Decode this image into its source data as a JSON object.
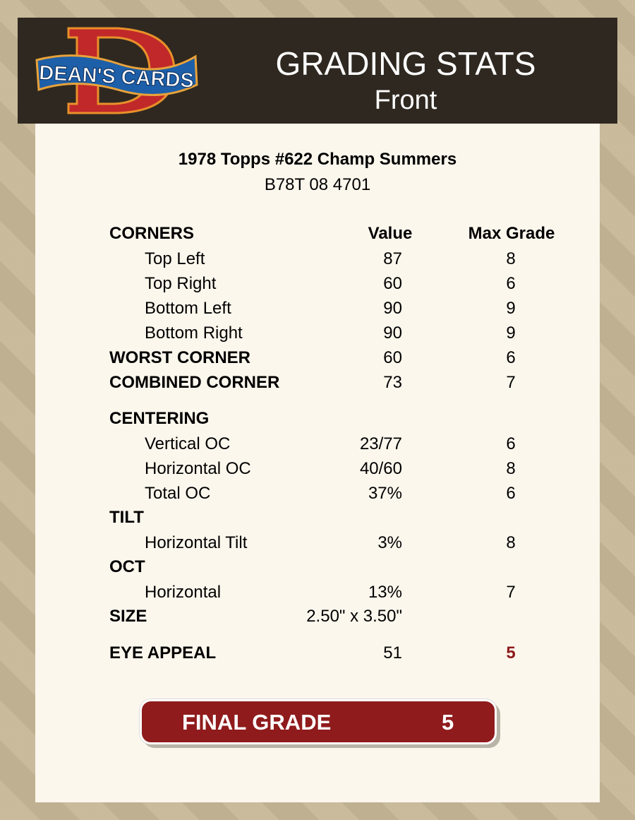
{
  "header": {
    "logo_text": "DEAN'S CARDS",
    "title": "GRADING STATS",
    "subtitle": "Front"
  },
  "card": {
    "title": "1978 Topps #622 Champ Summers",
    "id": "B78T 08 4701"
  },
  "columns": {
    "value": "Value",
    "max": "Max Grade"
  },
  "rows": [
    {
      "label": "CORNERS",
      "type": "section"
    },
    {
      "label": "Top Left",
      "value": "87",
      "max": "8"
    },
    {
      "label": "Top Right",
      "value": "60",
      "max": "6"
    },
    {
      "label": "Bottom Left",
      "value": "90",
      "max": "9"
    },
    {
      "label": "Bottom Right",
      "value": "90",
      "max": "9"
    },
    {
      "label": "WORST CORNER",
      "value": "60",
      "max": "6"
    },
    {
      "label": "COMBINED CORNER",
      "value": "73",
      "max": "7"
    },
    {
      "label": "CENTERING"
    },
    {
      "label": "Vertical OC",
      "value": "23/77",
      "max": "6"
    },
    {
      "label": "Horizontal OC",
      "value": "40/60",
      "max": "8"
    },
    {
      "label": "Total OC",
      "value": "37%",
      "max": "6"
    },
    {
      "label": "TILT"
    },
    {
      "label": "Horizontal Tilt",
      "value": "3%",
      "max": "8"
    },
    {
      "label": "OCT"
    },
    {
      "label": "Horizontal",
      "value": "13%",
      "max": "7"
    },
    {
      "label": "SIZE",
      "value": "2.50\" x 3.50\""
    },
    {
      "label": "EYE APPEAL",
      "value": "51",
      "max": "5"
    }
  ],
  "final": {
    "label": "FINAL GRADE",
    "value": "5"
  },
  "colors": {
    "header_bg": "#2f2820",
    "panel_bg": "#fcf7ed",
    "accent_red": "#8f1b1c"
  }
}
